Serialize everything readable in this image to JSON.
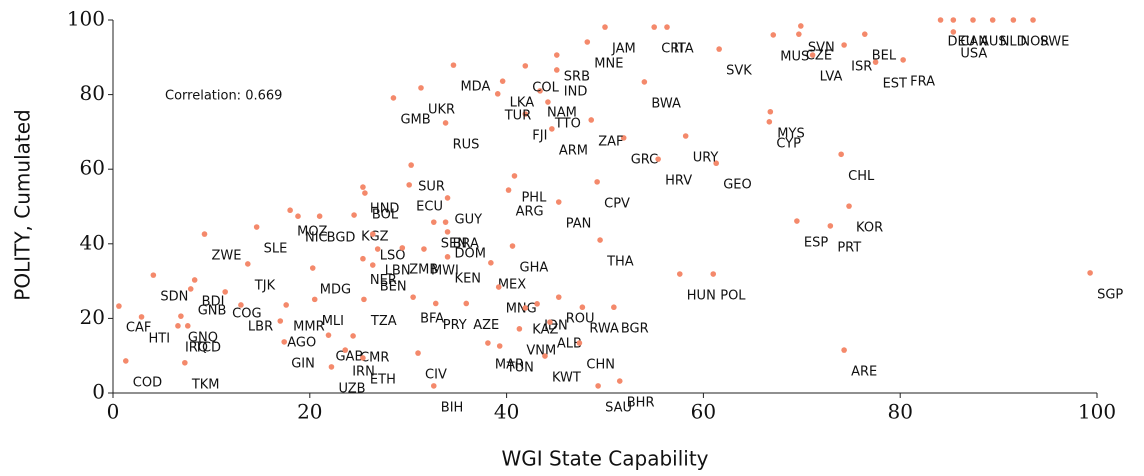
{
  "chart_data": {
    "type": "scatter",
    "x_label": "WGI State Capability",
    "y_label": "POLITY, Cumulated",
    "annotation": "Correlation: 0.669",
    "xlim": [
      0,
      100
    ],
    "ylim": [
      0,
      100
    ],
    "xticks": [
      0,
      20,
      40,
      60,
      80,
      100
    ],
    "yticks": [
      0,
      20,
      40,
      60,
      80,
      100
    ],
    "grid": false,
    "color": "#f4896b",
    "labels": [
      "COD",
      "TKM",
      "CAF",
      "HTI",
      "GNQ",
      "IRQ",
      "TCD",
      "SDN",
      "BDI",
      "GNB",
      "COG",
      "LBR",
      "ZWE",
      "TJK",
      "SLE",
      "MOZ",
      "NIC",
      "BGD",
      "KGZ",
      "HND",
      "ECU",
      "BOL",
      "GUY",
      "SUR",
      "LSO",
      "SEN",
      "BRA",
      "DOM",
      "LBN",
      "ZMB",
      "MWI",
      "KEN",
      "NER",
      "BEN",
      "MDG",
      "GHA",
      "MEX",
      "MNG",
      "ROU",
      "BGR",
      "IDN",
      "KAZ",
      "RWA",
      "TZA",
      "BFA",
      "PRY",
      "AZE",
      "MLI",
      "MMR",
      "AGO",
      "GIN",
      "GAB",
      "CMR",
      "IRN",
      "UZB",
      "ETH",
      "CIV",
      "BIH",
      "VNM",
      "ALB",
      "MAR",
      "TUN",
      "CHN",
      "KWT",
      "SAU",
      "BHR",
      "THA",
      "PAN",
      "CPV",
      "PHL",
      "ARG",
      "HUN",
      "POL",
      "SGP",
      "ARE",
      "KOR",
      "PRT",
      "ESP",
      "CHL",
      "GEO",
      "HRV",
      "URY",
      "GRC",
      "ZAF",
      "ARM",
      "FJI",
      "TTO",
      "TUR",
      "NAM",
      "LKA",
      "IND",
      "COL",
      "SRB",
      "MDA",
      "UKR",
      "GMB",
      "RUS",
      "BWA",
      "MNE",
      "JAM",
      "CRI",
      "ITA",
      "SVK",
      "MUS",
      "CZE",
      "SVN",
      "BEL",
      "LVA",
      "ISR",
      "EST",
      "FRA",
      "MYS",
      "CYP",
      "USA",
      "DEU",
      "CAN",
      "AUS",
      "NLD",
      "NOR",
      "SWE"
    ],
    "x": [
      1.3,
      7.3,
      0.6,
      2.9,
      6.9,
      6.6,
      7.6,
      4.1,
      8.3,
      7.9,
      11.4,
      13.0,
      9.3,
      13.7,
      14.6,
      18.0,
      18.8,
      21.0,
      24.5,
      25.4,
      30.1,
      25.6,
      34.0,
      30.3,
      26.4,
      32.6,
      33.8,
      34.0,
      26.9,
      29.4,
      31.6,
      34.0,
      25.4,
      26.4,
      20.3,
      40.6,
      38.4,
      39.2,
      45.3,
      50.9,
      43.1,
      41.9,
      47.7,
      25.5,
      30.5,
      32.8,
      35.9,
      20.5,
      17.6,
      17.0,
      17.4,
      21.9,
      24.4,
      23.6,
      22.2,
      25.4,
      31.0,
      32.6,
      41.3,
      44.4,
      38.1,
      39.3,
      47.4,
      43.9,
      49.3,
      51.5,
      49.5,
      45.3,
      49.2,
      40.8,
      40.2,
      57.6,
      61.0,
      99.3,
      74.3,
      74.8,
      72.9,
      69.5,
      74.0,
      61.3,
      55.4,
      58.2,
      51.9,
      48.6,
      44.6,
      41.9,
      44.2,
      39.1,
      43.4,
      39.6,
      45.1,
      41.9,
      45.1,
      34.6,
      31.3,
      28.5,
      33.8,
      54.0,
      48.2,
      50.0,
      55.0,
      56.3,
      61.6,
      67.1,
      69.7,
      69.9,
      76.4,
      71.1,
      74.3,
      77.5,
      80.3,
      66.8,
      66.7,
      85.4,
      84.1,
      85.4,
      87.4,
      89.4,
      91.5,
      93.5
    ],
    "values": [
      8.6,
      8.1,
      23.3,
      20.4,
      20.6,
      18.0,
      18.0,
      31.6,
      30.3,
      27.9,
      27.1,
      23.6,
      42.6,
      34.6,
      44.5,
      49.0,
      47.4,
      47.4,
      47.7,
      55.2,
      55.8,
      53.6,
      52.3,
      61.1,
      42.6,
      45.8,
      45.8,
      43.2,
      38.6,
      38.9,
      38.6,
      36.5,
      36.0,
      34.3,
      33.5,
      39.4,
      34.9,
      28.4,
      25.7,
      23.0,
      23.9,
      22.8,
      23.0,
      25.1,
      25.7,
      24.0,
      24.0,
      25.1,
      23.6,
      19.3,
      13.7,
      15.5,
      15.3,
      11.5,
      7.0,
      9.4,
      10.7,
      1.9,
      17.2,
      19.0,
      13.4,
      12.6,
      13.4,
      9.9,
      1.9,
      3.2,
      41.0,
      51.2,
      56.6,
      58.2,
      54.4,
      31.9,
      31.9,
      32.2,
      11.5,
      50.1,
      44.8,
      46.1,
      64.0,
      61.6,
      62.7,
      68.9,
      68.4,
      73.2,
      70.8,
      74.8,
      78.0,
      80.2,
      81.0,
      83.6,
      86.6,
      87.7,
      90.6,
      87.9,
      81.8,
      79.1,
      72.4,
      83.4,
      94.1,
      98.1,
      98.1,
      98.1,
      92.2,
      96.0,
      96.2,
      98.4,
      96.2,
      90.6,
      93.3,
      88.7,
      89.3,
      75.4,
      72.7,
      96.8,
      100,
      100,
      100,
      100,
      100,
      100
    ]
  }
}
